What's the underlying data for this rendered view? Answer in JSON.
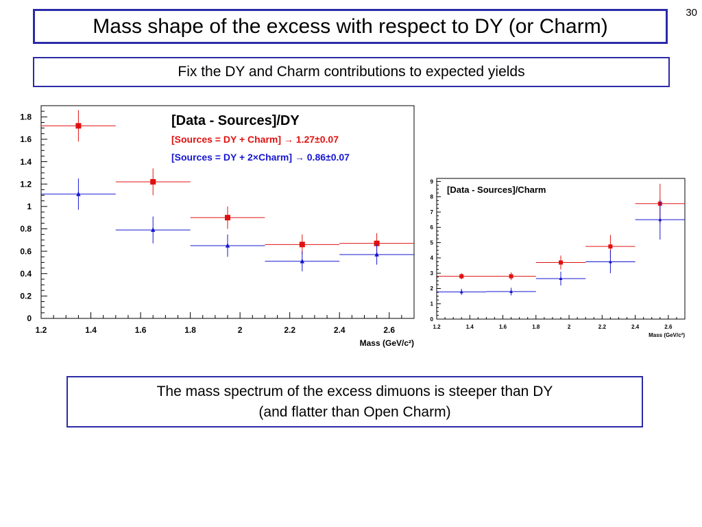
{
  "page_number": "30",
  "title": "Mass shape of the excess with respect to DY (or Charm)",
  "subtitle": "Fix the DY and Charm contributions to expected yields",
  "conclusion": {
    "line1": "The mass spectrum of the excess dimuons is steeper than DY",
    "line2": "(and flatter than Open Charm)"
  },
  "chart_data": [
    {
      "type": "scatter",
      "title": "[Data - Sources]/DY",
      "xlabel": "Mass (GeV/c²)",
      "ylabel": "",
      "xlim": [
        1.2,
        2.7
      ],
      "ylim": [
        0,
        1.9
      ],
      "x_tick_labels": [
        "1.2",
        "1.4",
        "1.6",
        "1.8",
        "2",
        "2.2",
        "2.4",
        "2.6"
      ],
      "y_tick_labels": [
        "0",
        "0.2",
        "0.4",
        "0.6",
        "0.8",
        "1",
        "1.2",
        "1.4",
        "1.6",
        "1.8"
      ],
      "grid": false,
      "series": [
        {
          "name": "[Sources = DY +     Charm] → 1.27±0.07",
          "color": "#e01010",
          "marker": "square",
          "x": [
            1.35,
            1.65,
            1.95,
            2.25,
            2.55
          ],
          "x_bin_low": [
            1.2,
            1.5,
            1.8,
            2.1,
            2.4
          ],
          "x_bin_high": [
            1.5,
            1.8,
            2.1,
            2.4,
            2.7
          ],
          "y": [
            1.72,
            1.22,
            0.9,
            0.66,
            0.67
          ],
          "y_err": [
            0.14,
            0.12,
            0.1,
            0.09,
            0.09
          ]
        },
        {
          "name": "[Sources = DY + 2×Charm] → 0.86±0.07",
          "color": "#1515d0",
          "marker": "triangle",
          "x": [
            1.35,
            1.65,
            1.95,
            2.25,
            2.55
          ],
          "x_bin_low": [
            1.2,
            1.5,
            1.8,
            2.1,
            2.4
          ],
          "x_bin_high": [
            1.5,
            1.8,
            2.1,
            2.4,
            2.7
          ],
          "y": [
            1.11,
            0.79,
            0.65,
            0.51,
            0.57
          ],
          "y_err": [
            0.14,
            0.12,
            0.1,
            0.09,
            0.09
          ]
        }
      ]
    },
    {
      "type": "scatter",
      "title": "[Data - Sources]/Charm",
      "xlabel": "Mass (GeV/c²)",
      "ylabel": "",
      "xlim": [
        1.2,
        2.7
      ],
      "ylim": [
        0,
        9.2
      ],
      "x_tick_labels": [
        "1.2",
        "1.4",
        "1.6",
        "1.8",
        "2",
        "2.2",
        "2.4",
        "2.6"
      ],
      "y_tick_labels": [
        "0",
        "1",
        "2",
        "3",
        "4",
        "5",
        "6",
        "7",
        "8",
        "9"
      ],
      "grid": false,
      "series": [
        {
          "color": "#e01010",
          "marker": "square",
          "x": [
            1.35,
            1.65,
            1.95,
            2.25,
            2.55
          ],
          "x_bin_low": [
            1.2,
            1.5,
            1.8,
            2.1,
            2.4
          ],
          "x_bin_high": [
            1.5,
            1.8,
            2.1,
            2.4,
            2.7
          ],
          "y": [
            2.8,
            2.8,
            3.7,
            4.75,
            7.55
          ],
          "y_err": [
            0.2,
            0.25,
            0.45,
            0.75,
            1.3
          ]
        },
        {
          "color": "#1515d0",
          "marker": "triangle",
          "x": [
            1.35,
            1.65,
            1.95,
            2.25,
            2.55
          ],
          "x_bin_low": [
            1.2,
            1.5,
            1.8,
            2.1,
            2.4
          ],
          "x_bin_high": [
            1.5,
            1.8,
            2.1,
            2.4,
            2.7
          ],
          "y": [
            1.78,
            1.8,
            2.65,
            3.75,
            6.5
          ],
          "y_err": [
            0.2,
            0.25,
            0.45,
            0.75,
            1.3
          ]
        }
      ]
    }
  ]
}
